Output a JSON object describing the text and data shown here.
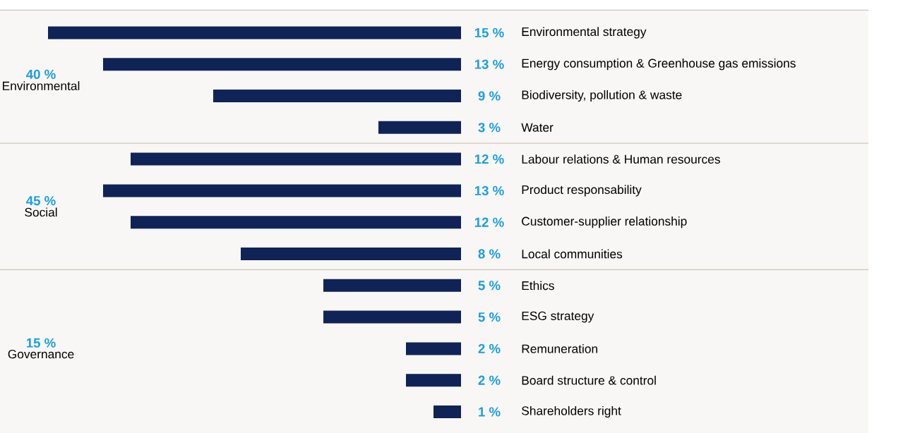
{
  "chart_data": {
    "type": "bar",
    "orientation": "horizontal",
    "color": "#0f2357",
    "categories": [
      "Environmental strategy",
      "Energy consumption & Greenhouse gas emissions",
      "Biodiversity, pollution & waste",
      "Water",
      "Labour relations & Human resources",
      "Product responsability",
      "Customer-supplier relationship",
      "Local communities",
      "Ethics",
      "ESG strategy",
      "Remuneration",
      "Board structure & control",
      "Shareholders right"
    ],
    "values": [
      15,
      13,
      9,
      3,
      12,
      13,
      12,
      8,
      5,
      5,
      2,
      2,
      1
    ],
    "value_labels": [
      "15 %",
      "13 %",
      "9 %",
      "3 %",
      "12 %",
      "13 %",
      "12 %",
      "8 %",
      "5 %",
      "5 %",
      "2 %",
      "2 %",
      "1 %"
    ],
    "bands": [
      {
        "axis": "y",
        "from": "Environmental strategy",
        "to": "Water",
        "label": "Environmental",
        "color": "#f8f7f5"
      },
      {
        "axis": "y",
        "from": "Labour relations & Human resources",
        "to": "Local communities",
        "label": "Social",
        "color": "#f8f7f5"
      },
      {
        "axis": "y",
        "from": "Ethics",
        "to": "Shareholders right",
        "label": "Governance",
        "color": "#f8f7f5"
      }
    ],
    "annotations": [
      "40 %",
      "45 %",
      "15 %"
    ]
  }
}
